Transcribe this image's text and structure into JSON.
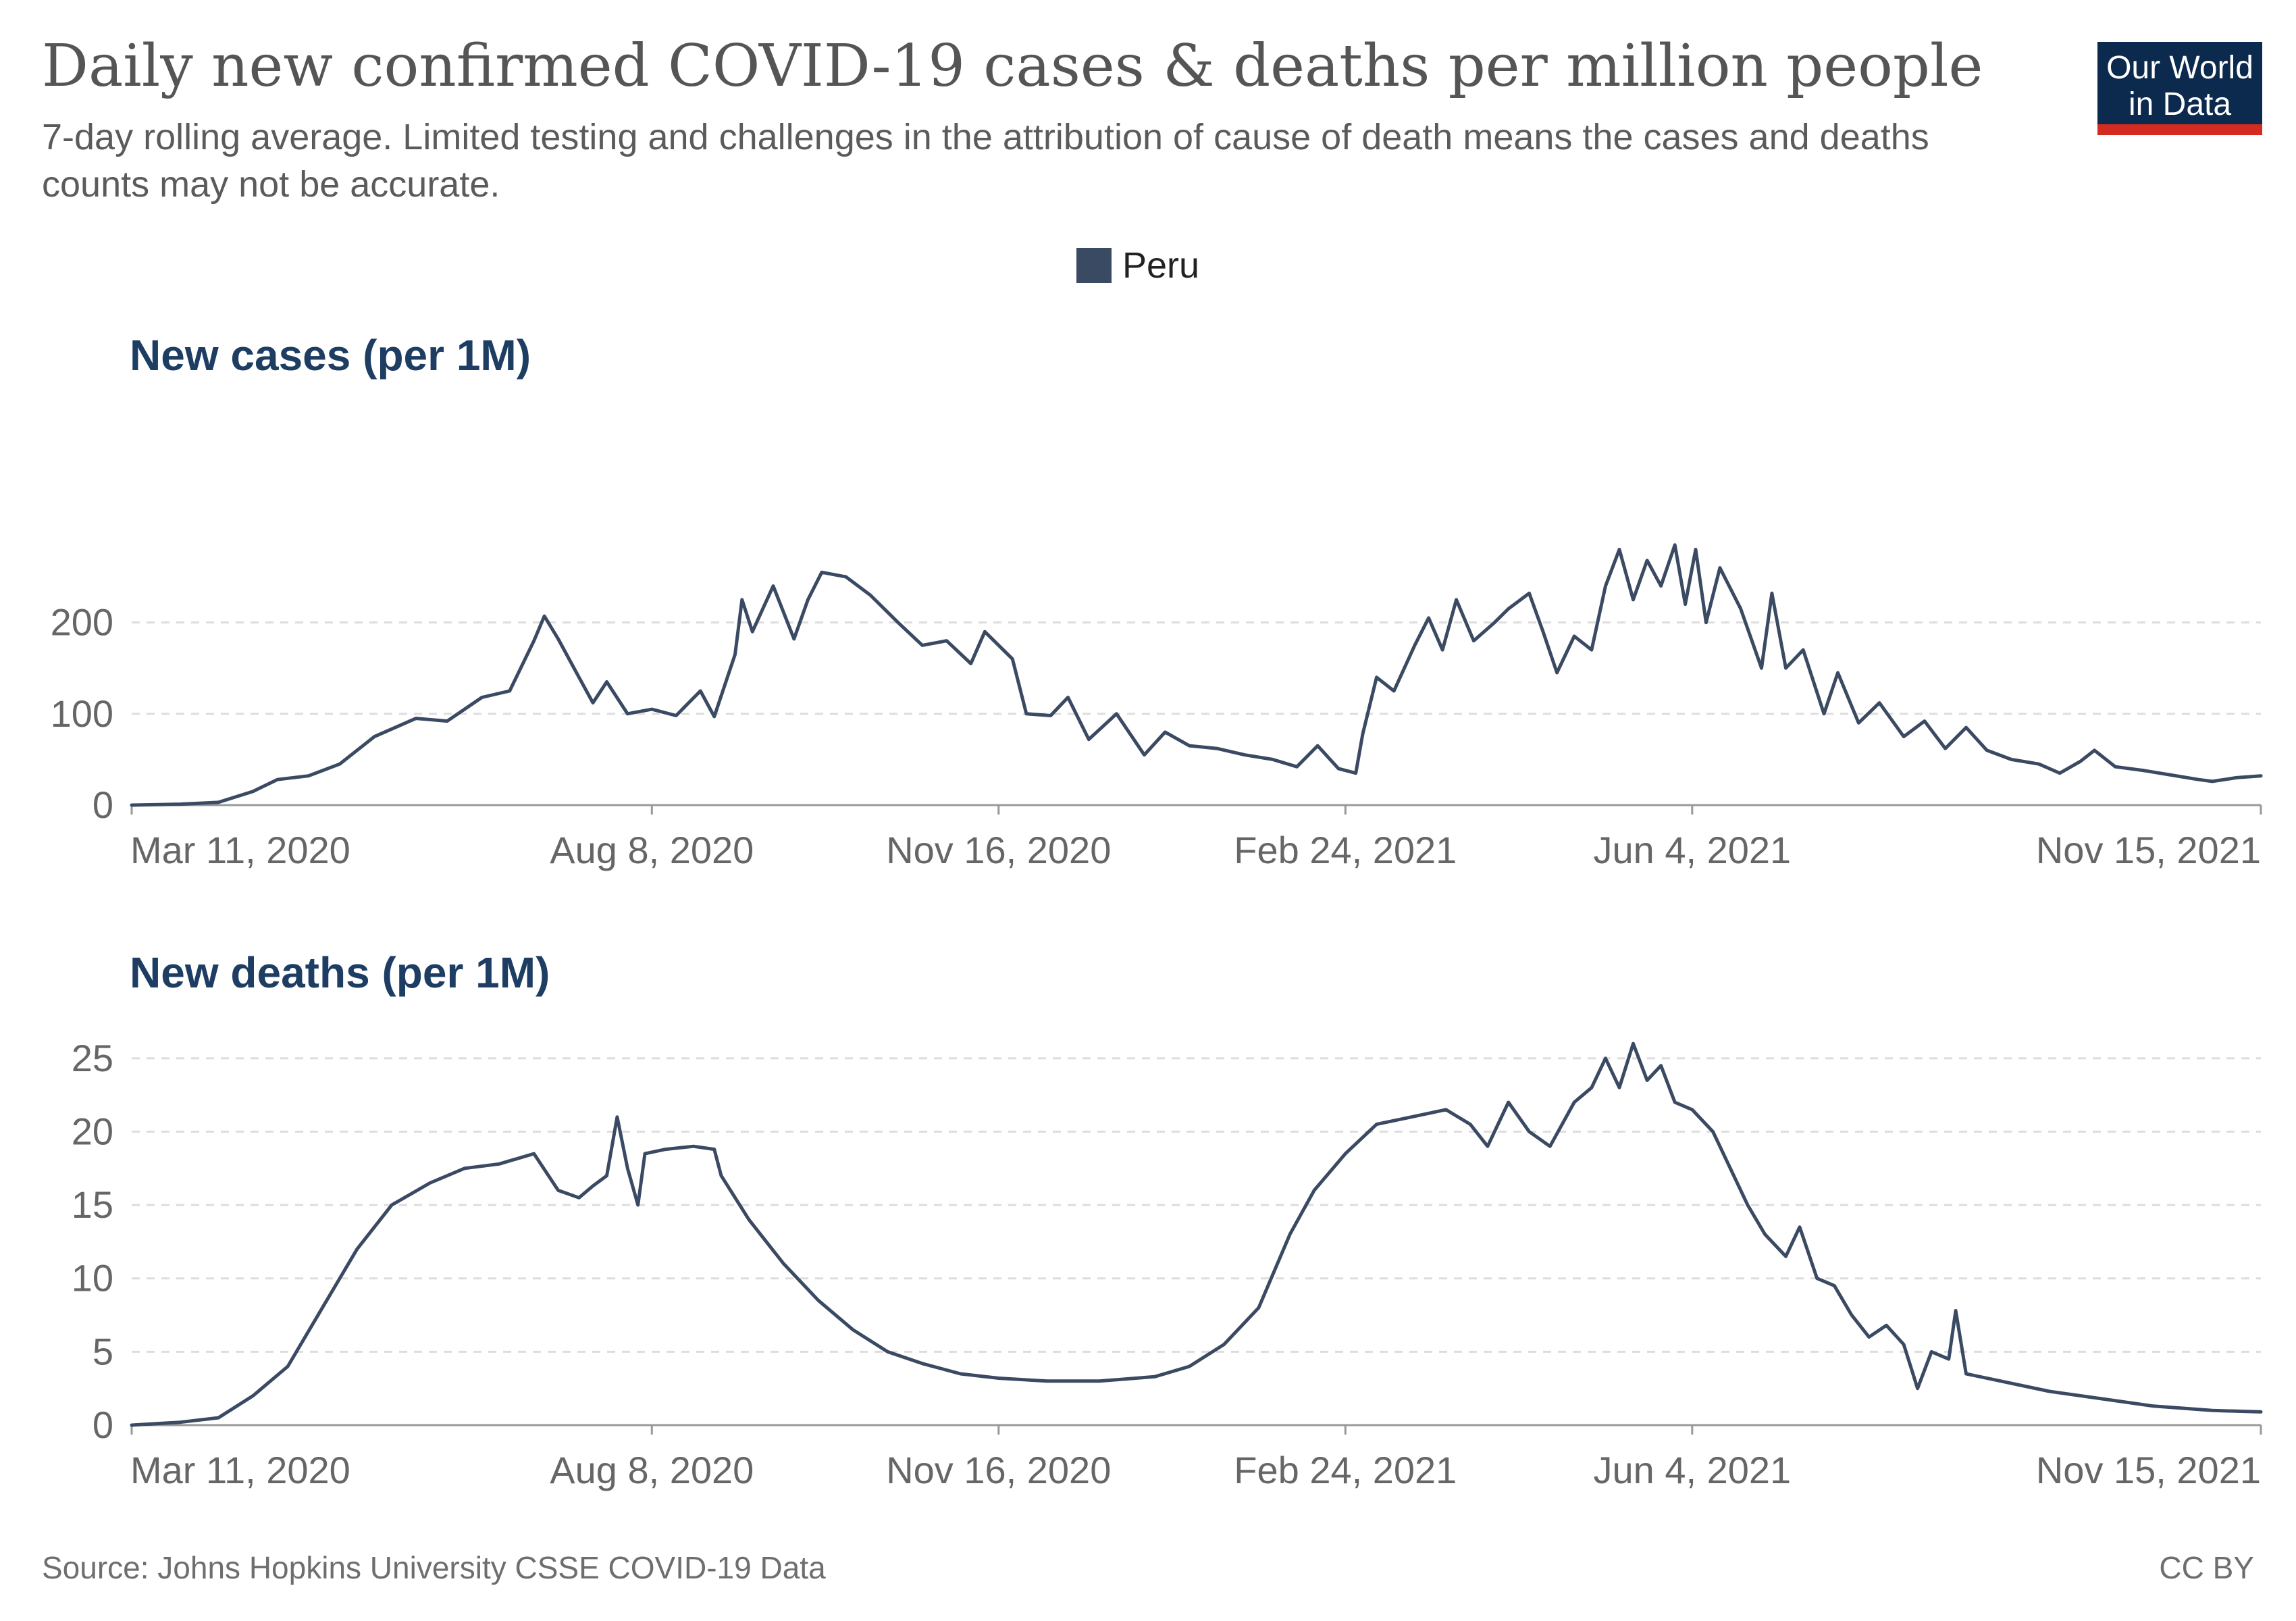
{
  "title": "Daily new confirmed COVID-19 cases & deaths per million people",
  "subtitle": "7-day rolling average. Limited testing and challenges in the attribution of cause of death means the cases and deaths counts may not be accurate.",
  "logo": {
    "line1": "Our World",
    "line2": "in Data",
    "bg_color": "#0c2a4d",
    "accent_color": "#d42b21"
  },
  "legend": {
    "label": "Peru",
    "color": "#3b4a63",
    "placement": "top-center"
  },
  "source": "Source: Johns Hopkins University CSSE COVID-19 Data",
  "license": "CC BY",
  "chart_data": [
    {
      "type": "line",
      "title": "New cases (per 1M)",
      "xlabel": "",
      "ylabel": "",
      "x_ticks": [
        "Mar 11, 2020",
        "Aug 8, 2020",
        "Nov 16, 2020",
        "Feb 24, 2021",
        "Jun 4, 2021",
        "Nov 15, 2021"
      ],
      "x_range": [
        "2020-03-11",
        "2021-11-15"
      ],
      "y_ticks": [
        0,
        100,
        200
      ],
      "ylim": [
        0,
        290
      ],
      "grid": "horizontal-dashed",
      "series": [
        {
          "name": "Peru",
          "color": "#3b4a63",
          "points": [
            [
              "2020-03-11",
              0
            ],
            [
              "2020-03-25",
              1
            ],
            [
              "2020-04-05",
              3
            ],
            [
              "2020-04-15",
              15
            ],
            [
              "2020-04-22",
              28
            ],
            [
              "2020-05-01",
              32
            ],
            [
              "2020-05-10",
              45
            ],
            [
              "2020-05-20",
              75
            ],
            [
              "2020-06-01",
              95
            ],
            [
              "2020-06-10",
              92
            ],
            [
              "2020-06-20",
              118
            ],
            [
              "2020-06-28",
              125
            ],
            [
              "2020-07-05",
              180
            ],
            [
              "2020-07-08",
              207
            ],
            [
              "2020-07-12",
              182
            ],
            [
              "2020-07-18",
              140
            ],
            [
              "2020-07-22",
              112
            ],
            [
              "2020-07-26",
              135
            ],
            [
              "2020-08-01",
              100
            ],
            [
              "2020-08-08",
              105
            ],
            [
              "2020-08-15",
              98
            ],
            [
              "2020-08-22",
              125
            ],
            [
              "2020-08-26",
              97
            ],
            [
              "2020-09-01",
              165
            ],
            [
              "2020-09-03",
              225
            ],
            [
              "2020-09-06",
              190
            ],
            [
              "2020-09-12",
              240
            ],
            [
              "2020-09-18",
              182
            ],
            [
              "2020-09-22",
              225
            ],
            [
              "2020-09-26",
              255
            ],
            [
              "2020-10-03",
              250
            ],
            [
              "2020-10-10",
              230
            ],
            [
              "2020-10-18",
              200
            ],
            [
              "2020-10-25",
              175
            ],
            [
              "2020-11-01",
              180
            ],
            [
              "2020-11-08",
              155
            ],
            [
              "2020-11-12",
              190
            ],
            [
              "2020-11-20",
              160
            ],
            [
              "2020-11-24",
              100
            ],
            [
              "2020-12-01",
              98
            ],
            [
              "2020-12-06",
              118
            ],
            [
              "2020-12-12",
              72
            ],
            [
              "2020-12-20",
              100
            ],
            [
              "2020-12-28",
              55
            ],
            [
              "2021-01-03",
              80
            ],
            [
              "2021-01-10",
              65
            ],
            [
              "2021-01-18",
              62
            ],
            [
              "2021-01-26",
              55
            ],
            [
              "2021-02-03",
              50
            ],
            [
              "2021-02-10",
              42
            ],
            [
              "2021-02-16",
              65
            ],
            [
              "2021-02-22",
              40
            ],
            [
              "2021-02-27",
              35
            ],
            [
              "2021-03-01",
              78
            ],
            [
              "2021-03-05",
              140
            ],
            [
              "2021-03-10",
              125
            ],
            [
              "2021-03-16",
              175
            ],
            [
              "2021-03-20",
              205
            ],
            [
              "2021-03-24",
              170
            ],
            [
              "2021-03-28",
              225
            ],
            [
              "2021-04-02",
              180
            ],
            [
              "2021-04-08",
              200
            ],
            [
              "2021-04-12",
              215
            ],
            [
              "2021-04-18",
              232
            ],
            [
              "2021-04-22",
              190
            ],
            [
              "2021-04-26",
              145
            ],
            [
              "2021-05-01",
              185
            ],
            [
              "2021-05-06",
              170
            ],
            [
              "2021-05-10",
              240
            ],
            [
              "2021-05-14",
              280
            ],
            [
              "2021-05-18",
              225
            ],
            [
              "2021-05-22",
              268
            ],
            [
              "2021-05-26",
              240
            ],
            [
              "2021-05-30",
              285
            ],
            [
              "2021-06-02",
              220
            ],
            [
              "2021-06-05",
              280
            ],
            [
              "2021-06-08",
              200
            ],
            [
              "2021-06-12",
              260
            ],
            [
              "2021-06-18",
              215
            ],
            [
              "2021-06-24",
              150
            ],
            [
              "2021-06-27",
              232
            ],
            [
              "2021-07-01",
              150
            ],
            [
              "2021-07-06",
              170
            ],
            [
              "2021-07-12",
              100
            ],
            [
              "2021-07-16",
              145
            ],
            [
              "2021-07-22",
              90
            ],
            [
              "2021-07-28",
              112
            ],
            [
              "2021-08-04",
              75
            ],
            [
              "2021-08-10",
              92
            ],
            [
              "2021-08-16",
              62
            ],
            [
              "2021-08-22",
              85
            ],
            [
              "2021-08-28",
              60
            ],
            [
              "2021-09-04",
              50
            ],
            [
              "2021-09-12",
              45
            ],
            [
              "2021-09-18",
              35
            ],
            [
              "2021-09-24",
              48
            ],
            [
              "2021-09-28",
              60
            ],
            [
              "2021-10-04",
              42
            ],
            [
              "2021-10-12",
              38
            ],
            [
              "2021-10-20",
              33
            ],
            [
              "2021-10-28",
              28
            ],
            [
              "2021-11-01",
              26
            ],
            [
              "2021-11-08",
              30
            ],
            [
              "2021-11-15",
              32
            ]
          ]
        }
      ]
    },
    {
      "type": "line",
      "title": "New deaths (per 1M)",
      "xlabel": "",
      "ylabel": "",
      "x_ticks": [
        "Mar 11, 2020",
        "Aug 8, 2020",
        "Nov 16, 2020",
        "Feb 24, 2021",
        "Jun 4, 2021",
        "Nov 15, 2021"
      ],
      "x_range": [
        "2020-03-11",
        "2021-11-15"
      ],
      "y_ticks": [
        0,
        5,
        10,
        15,
        20,
        25
      ],
      "ylim": [
        0,
        25.5
      ],
      "grid": "horizontal-dashed",
      "series": [
        {
          "name": "Peru",
          "color": "#3b4a63",
          "points": [
            [
              "2020-03-11",
              0
            ],
            [
              "2020-03-25",
              0.2
            ],
            [
              "2020-04-05",
              0.5
            ],
            [
              "2020-04-15",
              2
            ],
            [
              "2020-04-25",
              4
            ],
            [
              "2020-05-05",
              8
            ],
            [
              "2020-05-15",
              12
            ],
            [
              "2020-05-25",
              15
            ],
            [
              "2020-06-05",
              16.5
            ],
            [
              "2020-06-15",
              17.5
            ],
            [
              "2020-06-25",
              17.8
            ],
            [
              "2020-07-05",
              18.5
            ],
            [
              "2020-07-12",
              16
            ],
            [
              "2020-07-18",
              15.5
            ],
            [
              "2020-07-22",
              16.3
            ],
            [
              "2020-07-26",
              17
            ],
            [
              "2020-07-29",
              21
            ],
            [
              "2020-08-01",
              17.5
            ],
            [
              "2020-08-04",
              15
            ],
            [
              "2020-08-06",
              18.5
            ],
            [
              "2020-08-12",
              18.8
            ],
            [
              "2020-08-20",
              19
            ],
            [
              "2020-08-26",
              18.8
            ],
            [
              "2020-08-28",
              17
            ],
            [
              "2020-09-05",
              14
            ],
            [
              "2020-09-15",
              11
            ],
            [
              "2020-09-25",
              8.5
            ],
            [
              "2020-10-05",
              6.5
            ],
            [
              "2020-10-15",
              5
            ],
            [
              "2020-10-25",
              4.2
            ],
            [
              "2020-11-05",
              3.5
            ],
            [
              "2020-11-16",
              3.2
            ],
            [
              "2020-11-30",
              3
            ],
            [
              "2020-12-15",
              3
            ],
            [
              "2020-12-31",
              3.3
            ],
            [
              "2021-01-10",
              4
            ],
            [
              "2021-01-20",
              5.5
            ],
            [
              "2021-01-30",
              8
            ],
            [
              "2021-02-08",
              13
            ],
            [
              "2021-02-15",
              16
            ],
            [
              "2021-02-24",
              18.5
            ],
            [
              "2021-03-05",
              20.5
            ],
            [
              "2021-03-15",
              21
            ],
            [
              "2021-03-25",
              21.5
            ],
            [
              "2021-04-01",
              20.5
            ],
            [
              "2021-04-06",
              19
            ],
            [
              "2021-04-12",
              22
            ],
            [
              "2021-04-18",
              20
            ],
            [
              "2021-04-24",
              19
            ],
            [
              "2021-05-01",
              22
            ],
            [
              "2021-05-06",
              23
            ],
            [
              "2021-05-10",
              25
            ],
            [
              "2021-05-14",
              23
            ],
            [
              "2021-05-18",
              26
            ],
            [
              "2021-05-22",
              23.5
            ],
            [
              "2021-05-26",
              24.5
            ],
            [
              "2021-05-30",
              22
            ],
            [
              "2021-06-04",
              21.5
            ],
            [
              "2021-06-10",
              20
            ],
            [
              "2021-06-15",
              17.5
            ],
            [
              "2021-06-20",
              15
            ],
            [
              "2021-06-25",
              13
            ],
            [
              "2021-07-01",
              11.5
            ],
            [
              "2021-07-05",
              13.5
            ],
            [
              "2021-07-10",
              10
            ],
            [
              "2021-07-15",
              9.5
            ],
            [
              "2021-07-20",
              7.5
            ],
            [
              "2021-07-25",
              6
            ],
            [
              "2021-07-30",
              6.8
            ],
            [
              "2021-08-04",
              5.5
            ],
            [
              "2021-08-08",
              2.5
            ],
            [
              "2021-08-12",
              5
            ],
            [
              "2021-08-17",
              4.5
            ],
            [
              "2021-08-19",
              7.8
            ],
            [
              "2021-08-22",
              3.5
            ],
            [
              "2021-09-01",
              3
            ],
            [
              "2021-09-15",
              2.3
            ],
            [
              "2021-09-30",
              1.8
            ],
            [
              "2021-10-15",
              1.3
            ],
            [
              "2021-11-01",
              1
            ],
            [
              "2021-11-15",
              0.9
            ]
          ]
        }
      ]
    }
  ]
}
